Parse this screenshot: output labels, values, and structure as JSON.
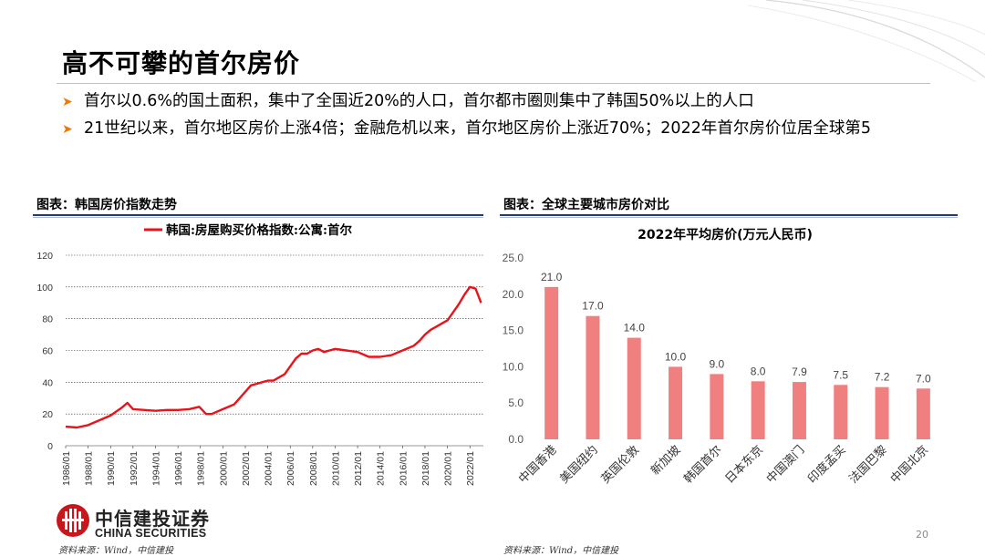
{
  "title": "高不可攀的首尔房价",
  "bullets": [
    "首尔以0.6%的国土面积，集中了全国近20%的人口，首尔都市圈则集中了韩国50%以上的人口",
    "21世纪以来，首尔地区房价上涨4倍；金融危机以来，首尔地区房价上涨近70%；2022年首尔房价位居全球第5"
  ],
  "left_caption": "图表：韩国房价指数走势",
  "right_caption": "图表：全球主要城市房价对比",
  "logo": {
    "cn": "中信建投证券",
    "en": "CHINA SECURITIES"
  },
  "source_left": "资料来源：Wind，中信建投",
  "source_right": "资料来源：Wind，中信建投",
  "page_number": "20",
  "colors": {
    "accent": "#f07800",
    "line": "#e8141b",
    "bar": "#f08080",
    "rule": "#1f3b6f"
  },
  "chart_data": [
    {
      "type": "line",
      "title": "",
      "xlabel": "",
      "ylabel": "",
      "ylim": [
        0,
        120
      ],
      "yticks": [
        "0",
        "20",
        "40",
        "60",
        "80",
        "100",
        "120"
      ],
      "xticks": [
        "1986/01",
        "1988/01",
        "1990/01",
        "1992/01",
        "1994/01",
        "1996/01",
        "1998/01",
        "2000/01",
        "2002/01",
        "2004/01",
        "2006/01",
        "2008/01",
        "2010/01",
        "2012/01",
        "2014/01",
        "2016/01",
        "2018/01",
        "2020/01",
        "2022/01"
      ],
      "grid": "horizontal dashed",
      "legend": "top",
      "series": [
        {
          "name": "韩国:房屋购买价格指数:公寓:首尔",
          "x": [
            1986.0,
            1987.0,
            1988.0,
            1989.0,
            1990.0,
            1991.0,
            1991.5,
            1992.0,
            1993.0,
            1994.0,
            1995.0,
            1996.0,
            1997.0,
            1997.9,
            1998.5,
            1999.0,
            2000.0,
            2001.0,
            2001.5,
            2002.0,
            2002.5,
            2003.0,
            2003.5,
            2004.0,
            2004.5,
            2005.0,
            2005.5,
            2006.0,
            2006.5,
            2007.0,
            2007.5,
            2008.0,
            2008.5,
            2009.0,
            2009.5,
            2010.0,
            2011.0,
            2012.0,
            2013.0,
            2014.0,
            2015.0,
            2016.0,
            2017.0,
            2017.5,
            2018.0,
            2018.5,
            2019.0,
            2019.5,
            2020.0,
            2020.5,
            2021.0,
            2021.5,
            2022.0,
            2022.5,
            2023.0
          ],
          "values": [
            12,
            11.5,
            13,
            16,
            19,
            24,
            27,
            23,
            22.5,
            22,
            22.5,
            22.5,
            23,
            24.5,
            20,
            20,
            23,
            26,
            30,
            34,
            38,
            39,
            40,
            41,
            41,
            43,
            45,
            50,
            55,
            58,
            58,
            60,
            61,
            59,
            60,
            61,
            60,
            59,
            56,
            56,
            57,
            60,
            63,
            66,
            70,
            73,
            75,
            77,
            79,
            84,
            89,
            95,
            100,
            99,
            90
          ]
        }
      ]
    },
    {
      "type": "bar",
      "title": "2022年平均房价(万元人民币)",
      "xlabel": "",
      "ylabel": "",
      "ylim": [
        0,
        25
      ],
      "yticks": [
        "0.0",
        "5.0",
        "10.0",
        "15.0",
        "20.0",
        "25.0"
      ],
      "categories": [
        "中国香港",
        "美国纽约",
        "英国伦敦",
        "新加坡",
        "韩国首尔",
        "日本东京",
        "中国澳门",
        "印度孟买",
        "法国巴黎",
        "中国北京"
      ],
      "values": [
        21.0,
        17.0,
        14.0,
        10.0,
        9.0,
        8.0,
        7.9,
        7.5,
        7.2,
        7.0
      ],
      "value_labels": [
        "21.0",
        "17.0",
        "14.0",
        "10.0",
        "9.0",
        "8.0",
        "7.9",
        "7.5",
        "7.2",
        "7.0"
      ]
    }
  ]
}
